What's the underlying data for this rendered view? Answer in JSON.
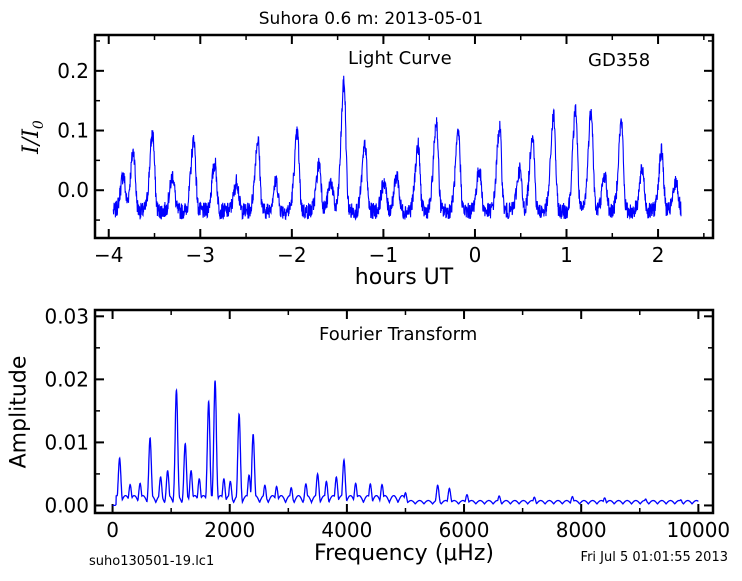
{
  "figure": {
    "title": "Suhora 0.6 m:  2013-05-01",
    "footer_left": "suho130501-19.lc1",
    "footer_right": "Fri Jul  5 01:01:55 2013"
  },
  "colors": {
    "line": "#0000ff",
    "axes": "#000000",
    "background": "#ffffff"
  },
  "chart_data": [
    {
      "type": "line",
      "annotation": "Light Curve",
      "object_label": "GD358",
      "xlabel": "hours UT",
      "ylabel": "I/I0",
      "xlim": [
        -4.15,
        2.6
      ],
      "ylim": [
        -0.08,
        0.26
      ],
      "x_ticks": [
        -4,
        -3,
        -2,
        -1,
        0,
        1,
        2
      ],
      "x_tick_labels": [
        "−4",
        "−3",
        "−2",
        "−1",
        "0",
        "1",
        "2"
      ],
      "y_ticks": [
        0.0,
        0.1,
        0.2
      ],
      "y_tick_labels": [
        "0.0",
        "0.1",
        "0.2"
      ],
      "x_range": [
        -3.95,
        2.25
      ],
      "baseline": -0.035,
      "pulses": [
        {
          "t": -3.84,
          "a": 0.06
        },
        {
          "t": -3.73,
          "a": 0.1
        },
        {
          "t": -3.52,
          "a": 0.13
        },
        {
          "t": -3.3,
          "a": 0.06
        },
        {
          "t": -3.07,
          "a": 0.12
        },
        {
          "t": -2.84,
          "a": 0.08
        },
        {
          "t": -2.6,
          "a": 0.05
        },
        {
          "t": -2.37,
          "a": 0.12
        },
        {
          "t": -2.17,
          "a": 0.05
        },
        {
          "t": -1.94,
          "a": 0.13
        },
        {
          "t": -1.7,
          "a": 0.08
        },
        {
          "t": -1.57,
          "a": 0.05
        },
        {
          "t": -1.43,
          "a": 0.215
        },
        {
          "t": -1.2,
          "a": 0.11
        },
        {
          "t": -0.99,
          "a": 0.05
        },
        {
          "t": -0.85,
          "a": 0.06
        },
        {
          "t": -0.62,
          "a": 0.11
        },
        {
          "t": -0.42,
          "a": 0.15
        },
        {
          "t": -0.18,
          "a": 0.13
        },
        {
          "t": 0.05,
          "a": 0.07
        },
        {
          "t": 0.27,
          "a": 0.14
        },
        {
          "t": 0.49,
          "a": 0.07
        },
        {
          "t": 0.63,
          "a": 0.13
        },
        {
          "t": 0.86,
          "a": 0.16
        },
        {
          "t": 1.1,
          "a": 0.17
        },
        {
          "t": 1.27,
          "a": 0.17
        },
        {
          "t": 1.42,
          "a": 0.06
        },
        {
          "t": 1.6,
          "a": 0.15
        },
        {
          "t": 1.83,
          "a": 0.07
        },
        {
          "t": 2.04,
          "a": 0.1
        },
        {
          "t": 2.2,
          "a": 0.05
        }
      ]
    },
    {
      "type": "line",
      "annotation": "Fourier Transform",
      "xlabel": "Frequency (μHz)",
      "ylabel": "Amplitude",
      "xlim": [
        -300,
        10250
      ],
      "ylim": [
        -0.0012,
        0.031
      ],
      "x_ticks": [
        0,
        2000,
        4000,
        6000,
        8000,
        10000
      ],
      "x_tick_labels": [
        "0",
        "2000",
        "4000",
        "6000",
        "8000",
        "10000"
      ],
      "y_ticks": [
        0.0,
        0.01,
        0.02,
        0.03
      ],
      "y_tick_labels": [
        "0.00",
        "0.01",
        "0.02",
        "0.03"
      ],
      "x_range": [
        0,
        10000
      ],
      "peaks": [
        {
          "f": 120,
          "a": 0.0075
        },
        {
          "f": 300,
          "a": 0.0033
        },
        {
          "f": 470,
          "a": 0.0035
        },
        {
          "f": 640,
          "a": 0.0107
        },
        {
          "f": 820,
          "a": 0.0045
        },
        {
          "f": 940,
          "a": 0.0055
        },
        {
          "f": 1090,
          "a": 0.0183
        },
        {
          "f": 1240,
          "a": 0.0098
        },
        {
          "f": 1340,
          "a": 0.0055
        },
        {
          "f": 1480,
          "a": 0.0042
        },
        {
          "f": 1640,
          "a": 0.0165
        },
        {
          "f": 1750,
          "a": 0.0198
        },
        {
          "f": 1900,
          "a": 0.0042
        },
        {
          "f": 2010,
          "a": 0.0038
        },
        {
          "f": 2160,
          "a": 0.0145
        },
        {
          "f": 2330,
          "a": 0.0048
        },
        {
          "f": 2400,
          "a": 0.0113
        },
        {
          "f": 2600,
          "a": 0.0032
        },
        {
          "f": 2800,
          "a": 0.003
        },
        {
          "f": 3050,
          "a": 0.0028
        },
        {
          "f": 3300,
          "a": 0.0034
        },
        {
          "f": 3500,
          "a": 0.005
        },
        {
          "f": 3650,
          "a": 0.0038
        },
        {
          "f": 3820,
          "a": 0.0045
        },
        {
          "f": 3950,
          "a": 0.0072
        },
        {
          "f": 4150,
          "a": 0.0035
        },
        {
          "f": 4400,
          "a": 0.0034
        },
        {
          "f": 4600,
          "a": 0.0033
        },
        {
          "f": 5000,
          "a": 0.002
        },
        {
          "f": 5550,
          "a": 0.0032
        },
        {
          "f": 5750,
          "a": 0.0027
        },
        {
          "f": 6050,
          "a": 0.0017
        },
        {
          "f": 6600,
          "a": 0.0015
        },
        {
          "f": 7200,
          "a": 0.0013
        },
        {
          "f": 7850,
          "a": 0.0014
        },
        {
          "f": 8400,
          "a": 0.0012
        },
        {
          "f": 9100,
          "a": 0.001
        },
        {
          "f": 9700,
          "a": 0.0009
        }
      ]
    }
  ]
}
